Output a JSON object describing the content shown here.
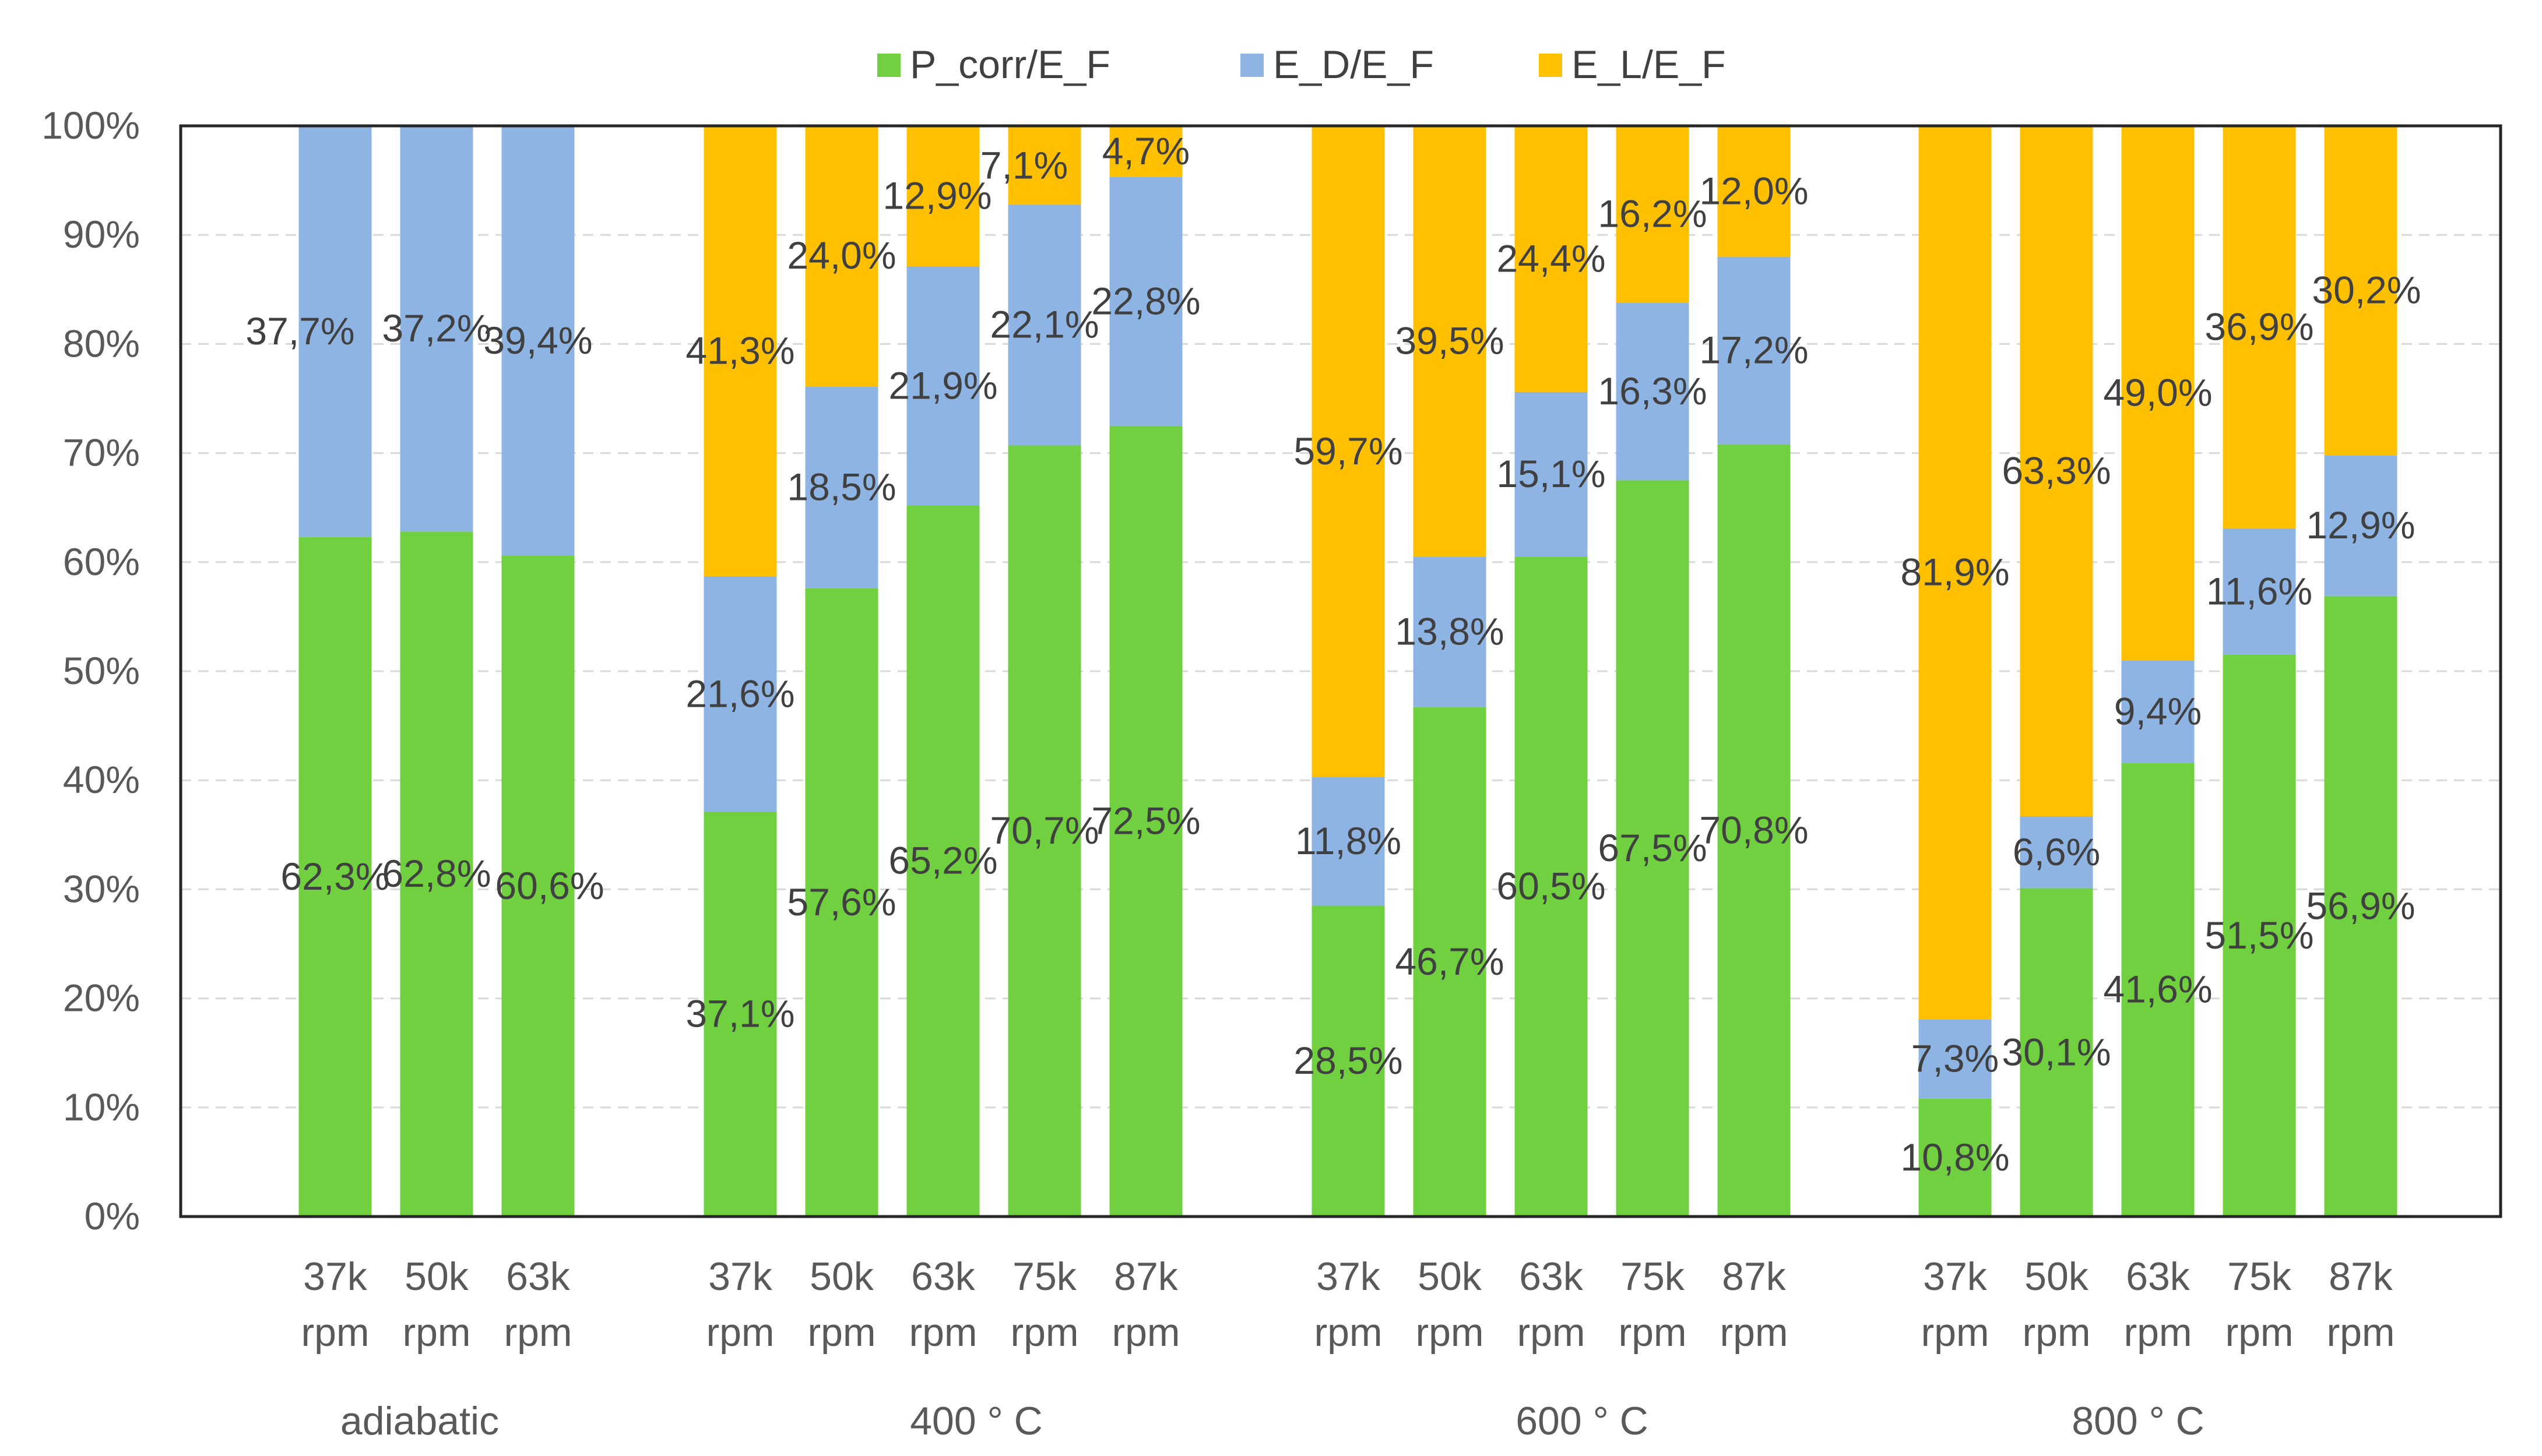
{
  "chart_data": {
    "type": "bar",
    "stacked": true,
    "percent": true,
    "title": "",
    "xlabel": "",
    "ylabel": "",
    "ylim": [
      0,
      100
    ],
    "yticks": [
      "0%",
      "10%",
      "20%",
      "30%",
      "40%",
      "50%",
      "60%",
      "70%",
      "80%",
      "90%",
      "100%"
    ],
    "grid": "horizontal-dashed",
    "legend_position": "top-center",
    "groups": [
      {
        "name": "adiabatic",
        "categories": [
          "37k rpm",
          "50k rpm",
          "63k rpm"
        ]
      },
      {
        "name": "400 ° C",
        "categories": [
          "37k rpm",
          "50k rpm",
          "63k rpm",
          "75k rpm",
          "87k rpm"
        ]
      },
      {
        "name": "600 ° C",
        "categories": [
          "37k rpm",
          "50k rpm",
          "63k rpm",
          "75k rpm",
          "87k rpm"
        ]
      },
      {
        "name": "800 ° C",
        "categories": [
          "37k rpm",
          "50k rpm",
          "63k rpm",
          "75k rpm",
          "87k rpm"
        ]
      }
    ],
    "series": [
      {
        "name": "P_corr/E_F",
        "color": "#70D040",
        "values": [
          62.3,
          62.8,
          60.6,
          37.1,
          57.6,
          65.2,
          70.7,
          72.5,
          28.5,
          46.7,
          60.5,
          67.5,
          70.8,
          10.8,
          30.1,
          41.6,
          51.5,
          56.9
        ],
        "labels": [
          "62,3%",
          "62,8%",
          "60,6%",
          "37,1%",
          "57,6%",
          "65,2%",
          "70,7%",
          "72,5%",
          "28,5%",
          "46,7%",
          "60,5%",
          "67,5%",
          "70,8%",
          "10,8%",
          "30,1%",
          "41,6%",
          "51,5%",
          "56,9%"
        ]
      },
      {
        "name": "E_D/E_F",
        "color": "#8EB4E3",
        "values": [
          37.7,
          37.2,
          39.4,
          21.6,
          18.5,
          21.9,
          22.1,
          22.8,
          11.8,
          13.8,
          15.1,
          16.3,
          17.2,
          7.3,
          6.6,
          9.4,
          11.6,
          12.9
        ],
        "labels": [
          "37,7%",
          "37,2%",
          "39,4%",
          "21,6%",
          "18,5%",
          "21,9%",
          "22,1%",
          "22,8%",
          "11,8%",
          "13,8%",
          "15,1%",
          "16,3%",
          "17,2%",
          "7,3%",
          "6,6%",
          "9,4%",
          "11,6%",
          "12,9%"
        ]
      },
      {
        "name": "E_L/E_F",
        "color": "#FFC000",
        "values": [
          0,
          0,
          0,
          41.3,
          24.0,
          12.9,
          7.1,
          4.7,
          59.7,
          39.5,
          24.4,
          16.2,
          12.0,
          81.9,
          63.3,
          49.0,
          36.9,
          30.2
        ],
        "labels": [
          "",
          "",
          "",
          "41,3%",
          "24,0%",
          "12,9%",
          "7,1%",
          "4,7%",
          "59,7%",
          "39,5%",
          "24,4%",
          "16,2%",
          "12,0%",
          "81,9%",
          "63,3%",
          "49,0%",
          "36,9%",
          "30,2%"
        ]
      }
    ]
  }
}
